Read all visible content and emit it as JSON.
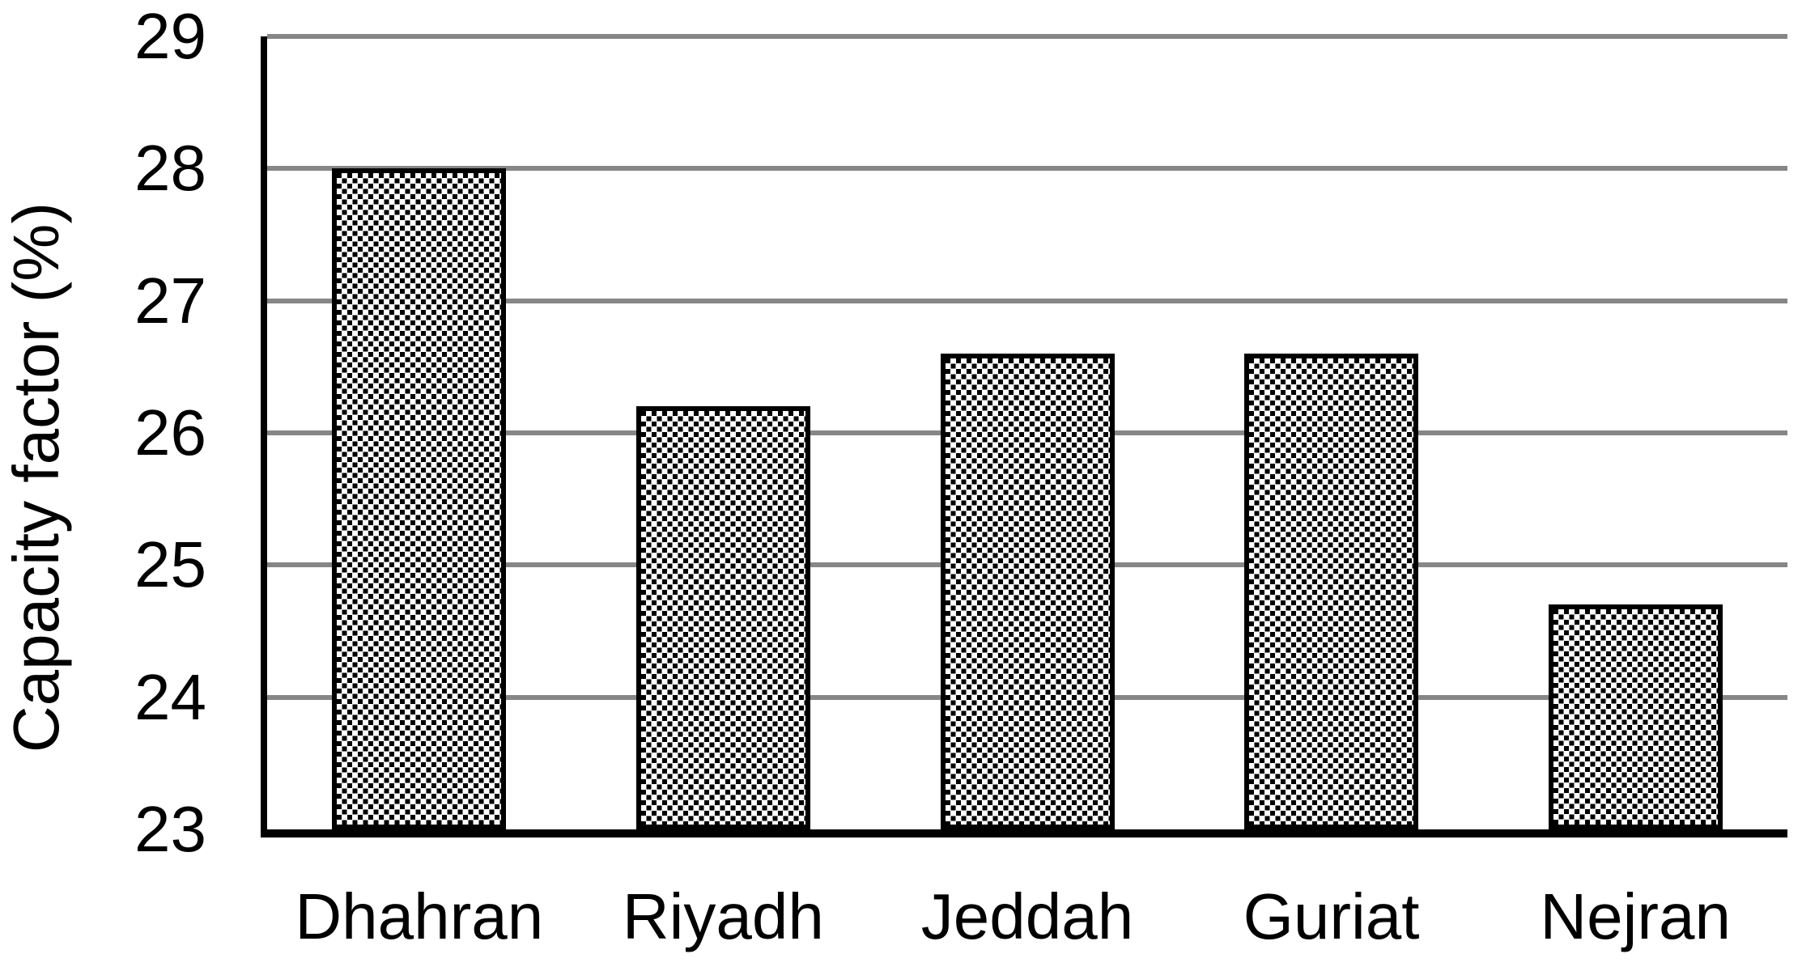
{
  "chart_data": {
    "type": "bar",
    "title": "",
    "xlabel": "",
    "ylabel": "Capacity factor (%)",
    "categories": [
      "Dhahran",
      "Riyadh",
      "Jeddah",
      "Guriat",
      "Nejran"
    ],
    "values": [
      28.0,
      26.2,
      26.6,
      26.6,
      24.7
    ],
    "ylim": [
      23,
      29
    ],
    "yticks": [
      29,
      28,
      27,
      26,
      25,
      24,
      23
    ],
    "grid": true,
    "legend": "none",
    "bar_fill_style": "diagonal-checkerboard",
    "colors": {
      "bar_pattern_foreground": "#000000",
      "bar_pattern_background": "#ffffff",
      "bar_border": "#000000",
      "gridline": "#868686",
      "axis_line": "#000000",
      "text": "#000000",
      "page_background": "#ffffff"
    }
  }
}
